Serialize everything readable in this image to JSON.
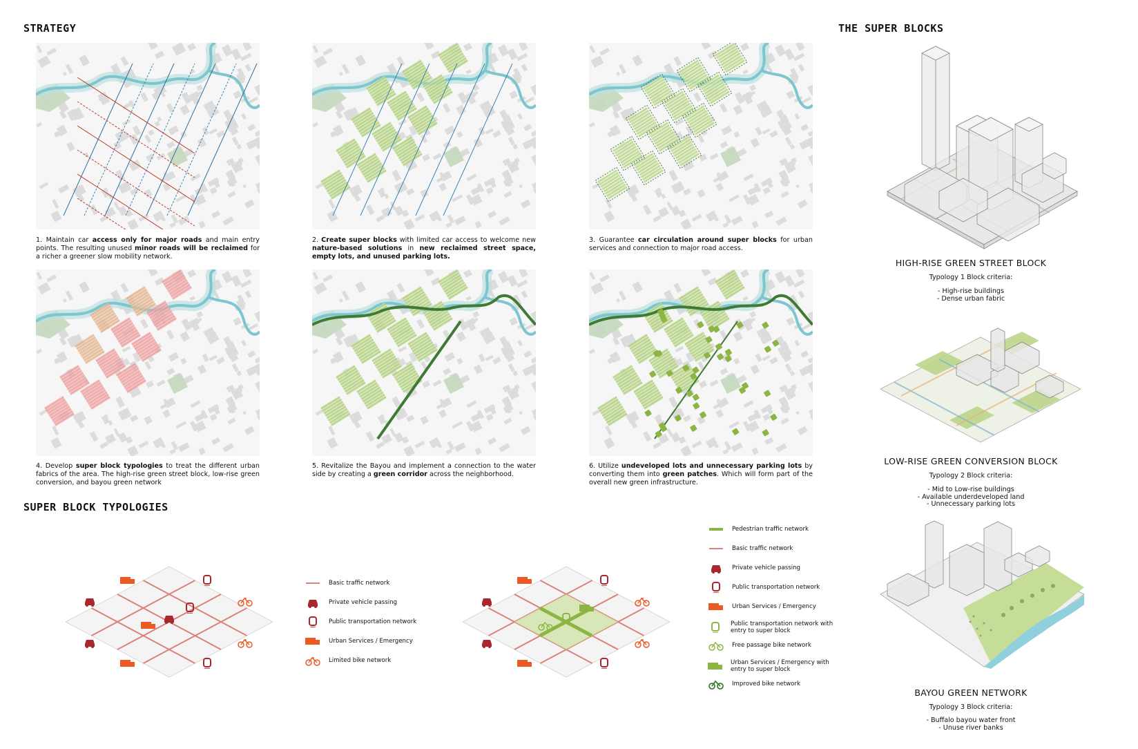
{
  "headings": {
    "strategy": "STRATEGY",
    "super_blocks": "THE SUPER BLOCKS",
    "typologies": "SUPER BLOCK TYPOLOGIES"
  },
  "steps": [
    {
      "parts": [
        {
          "t": "1. Maintain car "
        },
        {
          "t": "access only for major roads",
          "b": true
        },
        {
          "t": " and main entry points. The resulting unused "
        },
        {
          "t": "minor roads will be reclaimed",
          "b": true
        },
        {
          "t": " for a richer a greener slow mobility network."
        }
      ]
    },
    {
      "parts": [
        {
          "t": "2. "
        },
        {
          "t": "Create super blocks",
          "b": true
        },
        {
          "t": " with limited car access to welcome new "
        },
        {
          "t": "nature-based solutions",
          "b": true
        },
        {
          "t": " in "
        },
        {
          "t": "new reclaimed street space, empty lots, and unused parking lots.",
          "b": true
        }
      ]
    },
    {
      "parts": [
        {
          "t": "3. Guarantee "
        },
        {
          "t": "car circulation around super blocks",
          "b": true
        },
        {
          "t": " for urban services and connection to major road access."
        }
      ]
    },
    {
      "parts": [
        {
          "t": "4. Develop "
        },
        {
          "t": "super block typologies",
          "b": true
        },
        {
          "t": " to treat the different urban fabrics of the area. The high-rise green street block, low-rise green conversion, and bayou green network"
        }
      ]
    },
    {
      "parts": [
        {
          "t": "5. Revitalize the Bayou and implement a connection to the water side by creating a "
        },
        {
          "t": "green corridor",
          "b": true
        },
        {
          "t": " across the neighborhood."
        }
      ]
    },
    {
      "parts": [
        {
          "t": "6. Utilize "
        },
        {
          "t": "undeveloped lots and unnecessary parking lots",
          "b": true
        },
        {
          "t": " by converting them into "
        },
        {
          "t": "green patches",
          "b": true
        },
        {
          "t": ". Which will form part of the overall new green infrastructure."
        }
      ]
    }
  ],
  "blocks": [
    {
      "title": "HIGH-RISE GREEN STREET BLOCK",
      "criteria": "Typology 1 Block criteria:",
      "items": [
        "- High-rise buildings",
        "- Dense urban fabric"
      ]
    },
    {
      "title": "LOW-RISE GREEN CONVERSION BLOCK",
      "criteria": "Typology 2 Block criteria:",
      "items": [
        "- Mid to Low-rise buildings",
        "- Available underdeveloped land",
        "- Unnecessary parking lots"
      ]
    },
    {
      "title": "BAYOU GREEN NETWORK",
      "criteria": "Typology 3 Block criteria:",
      "items": [
        "- Buffalo bayou water front",
        "- Unuse river banks"
      ]
    }
  ],
  "legend_left": [
    {
      "icon": "road-line-icon",
      "label": "Basic traffic network"
    },
    {
      "icon": "car-icon",
      "label": "Private vehicle passing"
    },
    {
      "icon": "tram-icon",
      "label": "Public transportation network"
    },
    {
      "icon": "truck-icon",
      "label": "Urban Services / Emergency"
    },
    {
      "icon": "bike-icon",
      "label": "Limited bike network"
    }
  ],
  "legend_right": [
    {
      "icon": "pedestrian-line-icon",
      "label": "Pedestrian traffic network"
    },
    {
      "icon": "road-line-icon",
      "label": "Basic traffic network"
    },
    {
      "icon": "car-icon",
      "label": "Private vehicle passing"
    },
    {
      "icon": "tram-icon",
      "label": "Public transportation network"
    },
    {
      "icon": "truck-icon",
      "label": "Urban Services / Emergency"
    },
    {
      "icon": "green-tram-icon",
      "label": "Public transportation network with entry to super block"
    },
    {
      "icon": "green-bike-icon",
      "label": "Free passage bike network"
    },
    {
      "icon": "green-truck-icon",
      "label": "Urban Services / Emergency with entry to super block"
    },
    {
      "icon": "dark-green-bike-icon",
      "label": "Improved bike network"
    }
  ],
  "colors": {
    "red": "#a8282e",
    "orange": "#ec5a24",
    "green": "#8db543",
    "darkgreen": "#3f7a35",
    "river": "#7cc6cf",
    "road": "#d9837a"
  }
}
